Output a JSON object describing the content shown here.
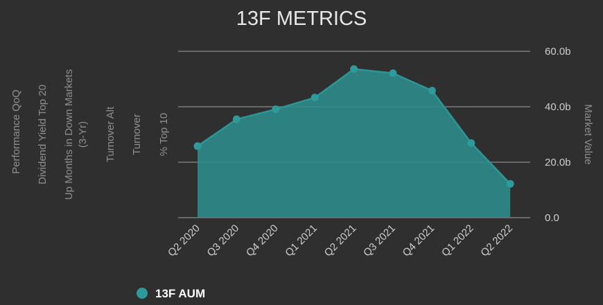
{
  "chart_data": {
    "type": "area",
    "title": "13F METRICS",
    "categories": [
      "Q2 2020",
      "Q3 2020",
      "Q4 2020",
      "Q1 2021",
      "Q2 2021",
      "Q3 2021",
      "Q4 2021",
      "Q1 2022",
      "Q2 2022"
    ],
    "series": [
      {
        "name": "13F AUM",
        "values": [
          25.8,
          35.5,
          39.1,
          43.3,
          53.6,
          52.1,
          45.8,
          26.9,
          12.2
        ],
        "color": "#2e8b8b"
      }
    ],
    "y_axis_right": {
      "label": "Market Value",
      "ylim": [
        0,
        60
      ],
      "ticks": [
        "0.0",
        "20.0b",
        "40.0b",
        "60.0b"
      ]
    },
    "y_axes_left_labels": [
      "Performance QoQ",
      "Dividend Yield Top 20",
      "Up Months in Down Markets",
      "(3-Yr)",
      "Turnover Alt",
      "Turnover",
      "% Top 10"
    ],
    "grid": true,
    "legend_position": "bottom-left"
  },
  "colors": {
    "background": "#2f2f2f",
    "area_fill": "#2e8b8b",
    "line": "#2e9595",
    "marker": "#2e9a9a"
  }
}
